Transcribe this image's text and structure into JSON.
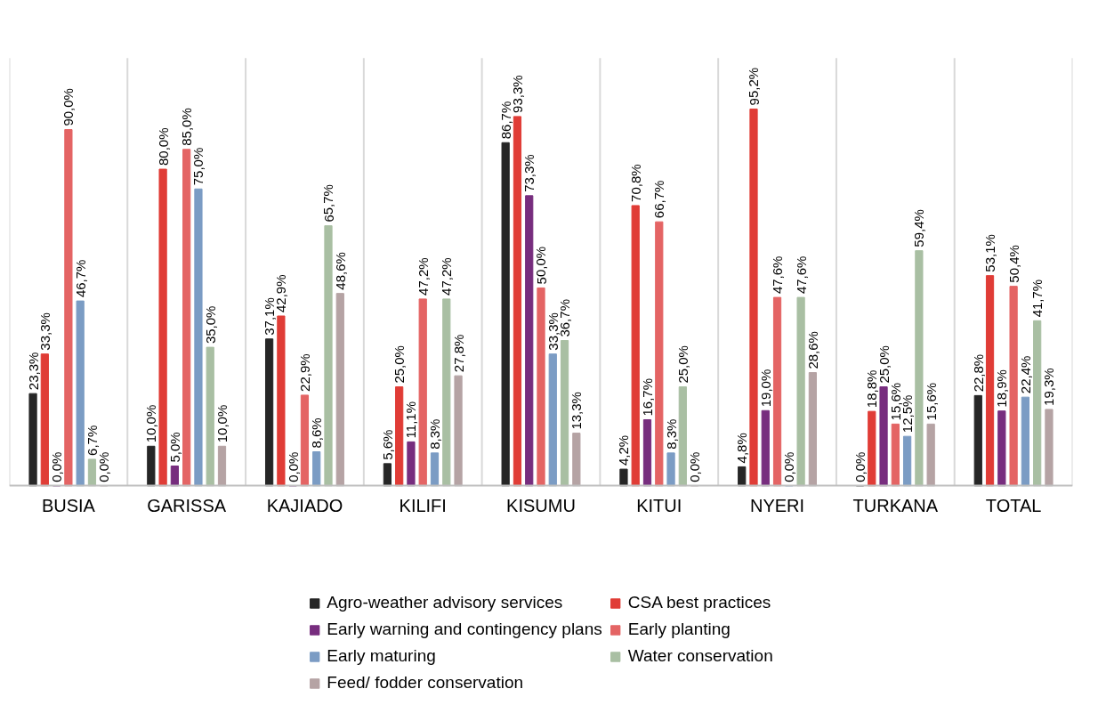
{
  "chart_data": {
    "type": "bar",
    "categories": [
      "BUSIA",
      "GARISSA",
      "KAJIADO",
      "KILIFI",
      "KISUMU",
      "KITUI",
      "NYERI",
      "TURKANA",
      "TOTAL"
    ],
    "series": [
      {
        "name": "Agro-weather advisory services",
        "color": "#262626",
        "values": [
          23.3,
          10.0,
          37.1,
          5.6,
          86.7,
          4.2,
          4.8,
          0.0,
          22.8
        ],
        "value_labels": [
          "23,3%",
          "10,0%",
          "37,1%",
          "5,6%",
          "86,7%",
          "4,2%",
          "4,8%",
          "0,0%",
          "22,8%"
        ]
      },
      {
        "name": "CSA best practices",
        "color": "#e03c36",
        "values": [
          33.3,
          80.0,
          42.9,
          25.0,
          93.3,
          70.8,
          95.2,
          18.8,
          53.1
        ],
        "value_labels": [
          "33,3%",
          "80,0%",
          "42,9%",
          "25,0%",
          "93,3%",
          "70,8%",
          "95,2%",
          "18,8%",
          "53,1%"
        ]
      },
      {
        "name": "Early warning and contingency plans",
        "color": "#772d7e",
        "values": [
          0.0,
          5.0,
          0.0,
          11.1,
          73.3,
          16.7,
          19.0,
          25.0,
          18.9
        ],
        "value_labels": [
          "0,0%",
          "5,0%",
          "0,0%",
          "11,1%",
          "73,3%",
          "16,7%",
          "19,0%",
          "25,0%",
          "18,9%"
        ]
      },
      {
        "name": "Early planting",
        "color": "#e46464",
        "values": [
          90.0,
          85.0,
          22.9,
          47.2,
          50.0,
          66.7,
          47.6,
          15.6,
          50.4
        ],
        "value_labels": [
          "90,0%",
          "85,0%",
          "22,9%",
          "47,2%",
          "50,0%",
          "66,7%",
          "47,6%",
          "15,6%",
          "50,4%"
        ]
      },
      {
        "name": "Early maturing",
        "color": "#7b9cc4",
        "values": [
          46.7,
          75.0,
          8.6,
          8.3,
          33.3,
          8.3,
          0.0,
          12.5,
          22.4
        ],
        "value_labels": [
          "46,7%",
          "75,0%",
          "8,6%",
          "8,3%",
          "33,3%",
          "8,3%",
          "0,0%",
          "12,5%",
          "22,4%"
        ]
      },
      {
        "name": "Water conservation",
        "color": "#a9bfa3",
        "values": [
          6.7,
          35.0,
          65.7,
          47.2,
          36.7,
          25.0,
          47.6,
          59.4,
          41.7
        ],
        "value_labels": [
          "6,7%",
          "35,0%",
          "65,7%",
          "47,2%",
          "36,7%",
          "25,0%",
          "47,6%",
          "59,4%",
          "41,7%"
        ]
      },
      {
        "name": "Feed/ fodder conservation",
        "color": "#b5a3a4",
        "values": [
          0.0,
          10.0,
          48.6,
          27.8,
          13.3,
          0.0,
          28.6,
          15.6,
          19.3
        ],
        "value_labels": [
          "0,0%",
          "10,0%",
          "48,6%",
          "27,8%",
          "13,3%",
          "0,0%",
          "28,6%",
          "15,6%",
          "19,3%"
        ]
      }
    ],
    "tick_labels": "x",
    "grid": "x",
    "legend": "bottom"
  }
}
